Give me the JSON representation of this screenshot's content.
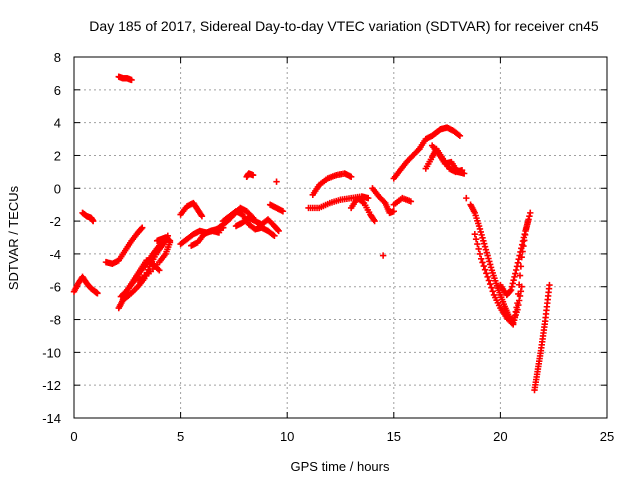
{
  "chart_data": {
    "type": "scatter",
    "title": "Day 185 of 2017, Sidereal Day-to-day VTEC variation (SDTVAR) for receiver cn45",
    "xlabel": "GPS time / hours",
    "ylabel": "SDTVAR / TECUs",
    "xlim": [
      0,
      25
    ],
    "ylim": [
      -14,
      8
    ],
    "xticks": [
      "0",
      "5",
      "10",
      "15",
      "20",
      "25"
    ],
    "yticks": [
      "-14",
      "-12",
      "-10",
      "-8",
      "-6",
      "-4",
      "-2",
      "0",
      "2",
      "4",
      "6",
      "8"
    ],
    "grid": true,
    "marker": "+",
    "color": "#ff0000",
    "segments": [
      {
        "x": [
          0.0,
          0.2,
          0.4,
          0.6,
          0.8,
          1.0,
          1.1
        ],
        "y": [
          -6.3,
          -5.8,
          -5.4,
          -5.8,
          -6.1,
          -6.3,
          -6.4
        ]
      },
      {
        "x": [
          0.4,
          0.6,
          0.8,
          0.9
        ],
        "y": [
          -1.5,
          -1.7,
          -1.8,
          -2.0
        ]
      },
      {
        "x": [
          2.1,
          2.3,
          2.5,
          2.7
        ],
        "y": [
          6.8,
          6.7,
          6.7,
          6.6
        ]
      },
      {
        "x": [
          1.5,
          1.8,
          2.1,
          2.4,
          2.7,
          3.0,
          3.2
        ],
        "y": [
          -4.5,
          -4.6,
          -4.4,
          -3.8,
          -3.2,
          -2.7,
          -2.4
        ]
      },
      {
        "x": [
          2.1,
          2.3,
          2.5,
          2.8,
          3.1,
          3.4,
          3.7,
          4.0
        ],
        "y": [
          -7.3,
          -6.8,
          -6.2,
          -5.6,
          -5.0,
          -4.4,
          -4.6,
          -5.0
        ]
      },
      {
        "x": [
          2.2,
          2.5,
          2.8,
          3.1,
          3.4,
          3.7,
          4.0,
          4.3
        ],
        "y": [
          -6.6,
          -6.2,
          -5.7,
          -5.1,
          -4.6,
          -4.0,
          -3.5,
          -3.1
        ]
      },
      {
        "x": [
          2.3,
          2.6,
          3.0,
          3.3,
          3.6,
          3.9,
          4.2,
          4.4
        ],
        "y": [
          -6.8,
          -6.5,
          -6.0,
          -5.5,
          -4.6,
          -3.9,
          -3.4,
          -2.9
        ]
      },
      {
        "x": [
          3.0,
          3.5,
          4.0,
          4.3,
          4.5
        ],
        "y": [
          -5.6,
          -5.2,
          -4.5,
          -4.0,
          -3.3
        ]
      },
      {
        "x": [
          3.9,
          4.1,
          4.3,
          4.5
        ],
        "y": [
          -3.2,
          -3.1,
          -3.0,
          -3.2
        ]
      },
      {
        "x": [
          5.0,
          5.3,
          5.6,
          5.8,
          6.0
        ],
        "y": [
          -1.6,
          -1.1,
          -0.9,
          -1.3,
          -1.7
        ]
      },
      {
        "x": [
          5.0,
          5.3,
          5.6,
          5.9,
          6.2,
          6.5,
          6.8
        ],
        "y": [
          -3.4,
          -3.1,
          -2.8,
          -2.6,
          -2.7,
          -2.6,
          -2.7
        ]
      },
      {
        "x": [
          5.5,
          5.8,
          6.1,
          6.4,
          6.7,
          7.0
        ],
        "y": [
          -3.5,
          -3.3,
          -2.8,
          -2.6,
          -2.5,
          -2.4
        ]
      },
      {
        "x": [
          6.6,
          6.9,
          7.2,
          7.5,
          7.8,
          8.1,
          8.4
        ],
        "y": [
          -2.6,
          -2.3,
          -2.0,
          -1.6,
          -1.2,
          -1.4,
          -1.8
        ]
      },
      {
        "x": [
          7.0,
          7.3,
          7.6,
          7.9,
          8.2,
          8.5,
          8.8,
          9.1,
          9.4
        ],
        "y": [
          -2.0,
          -1.7,
          -1.4,
          -1.6,
          -2.2,
          -2.5,
          -2.4,
          -2.6,
          -2.9
        ]
      },
      {
        "x": [
          7.6,
          7.9,
          8.2,
          8.5,
          8.8,
          9.1,
          9.4,
          9.6
        ],
        "y": [
          -2.3,
          -2.1,
          -1.8,
          -2.0,
          -2.2,
          -1.9,
          -2.3,
          -2.6
        ]
      },
      {
        "x": [
          8.1,
          8.2,
          8.4
        ],
        "y": [
          0.7,
          0.9,
          0.8
        ]
      },
      {
        "x": [
          9.2,
          9.5,
          9.8
        ],
        "y": [
          -1.0,
          -1.2,
          -1.4
        ]
      },
      {
        "x": [
          9.5
        ],
        "y": [
          0.4
        ]
      },
      {
        "x": [
          11.0,
          11.5,
          12.0,
          12.5,
          13.0,
          13.5,
          13.8
        ],
        "y": [
          -1.2,
          -1.2,
          -0.9,
          -0.7,
          -0.6,
          -0.5,
          -0.6
        ]
      },
      {
        "x": [
          11.2,
          11.5,
          11.9,
          12.3,
          12.7,
          13.0
        ],
        "y": [
          -0.4,
          0.2,
          0.6,
          0.8,
          0.9,
          0.7
        ]
      },
      {
        "x": [
          13.0,
          13.3,
          13.6,
          13.9,
          14.1
        ],
        "y": [
          -1.2,
          -0.6,
          -0.9,
          -1.6,
          -2.0
        ]
      },
      {
        "x": [
          14.0,
          14.3,
          14.6,
          14.8,
          15.0
        ],
        "y": [
          0.0,
          -0.5,
          -0.9,
          -1.5,
          -1.4
        ]
      },
      {
        "x": [
          14.5
        ],
        "y": [
          -4.1
        ]
      },
      {
        "x": [
          15.0,
          15.4,
          15.8
        ],
        "y": [
          -1.0,
          -0.6,
          -0.8
        ]
      },
      {
        "x": [
          15.0,
          15.3,
          15.6,
          15.9,
          16.2
        ],
        "y": [
          0.6,
          1.1,
          1.6,
          2.0,
          2.4
        ]
      },
      {
        "x": [
          16.2,
          16.5,
          16.8,
          17.0,
          17.2,
          17.5,
          17.8,
          18.1
        ],
        "y": [
          2.4,
          3.0,
          3.2,
          3.4,
          3.6,
          3.7,
          3.5,
          3.2
        ]
      },
      {
        "x": [
          16.5,
          16.8,
          17.0,
          17.3,
          17.6,
          17.9,
          18.2
        ],
        "y": [
          1.2,
          1.9,
          2.4,
          1.8,
          1.2,
          1.0,
          1.1
        ]
      },
      {
        "x": [
          16.8,
          17.1,
          17.4,
          17.7,
          18.0,
          18.3
        ],
        "y": [
          2.6,
          2.1,
          1.5,
          1.6,
          1.0,
          0.9
        ]
      },
      {
        "x": [
          18.4
        ],
        "y": [
          -0.6
        ]
      },
      {
        "x": [
          18.6,
          18.8,
          19.0,
          19.2,
          19.4,
          19.6,
          19.8,
          20.0,
          20.2,
          20.4,
          20.6,
          20.8,
          21.0
        ],
        "y": [
          -1.0,
          -1.5,
          -2.3,
          -3.2,
          -4.1,
          -5.0,
          -5.8,
          -6.5,
          -7.2,
          -7.8,
          -8.2,
          -7.4,
          -6.0
        ]
      },
      {
        "x": [
          18.8,
          19.1,
          19.4,
          19.7,
          20.0,
          20.3,
          20.6,
          20.8,
          21.0,
          21.2,
          21.4
        ],
        "y": [
          -2.8,
          -4.3,
          -5.4,
          -6.5,
          -7.3,
          -7.9,
          -8.3,
          -7.0,
          -4.2,
          -2.5,
          -1.5
        ]
      },
      {
        "x": [
          20.0,
          20.3,
          20.5,
          20.7,
          20.9,
          21.1,
          21.3
        ],
        "y": [
          -5.9,
          -6.5,
          -6.2,
          -5.2,
          -4.1,
          -3.0,
          -2.0
        ]
      },
      {
        "x": [
          21.6,
          21.7,
          21.8,
          21.9,
          22.0,
          22.1,
          22.2,
          22.3
        ],
        "y": [
          -12.3,
          -11.5,
          -10.7,
          -9.9,
          -9.0,
          -8.1,
          -7.0,
          -5.9
        ]
      }
    ]
  }
}
